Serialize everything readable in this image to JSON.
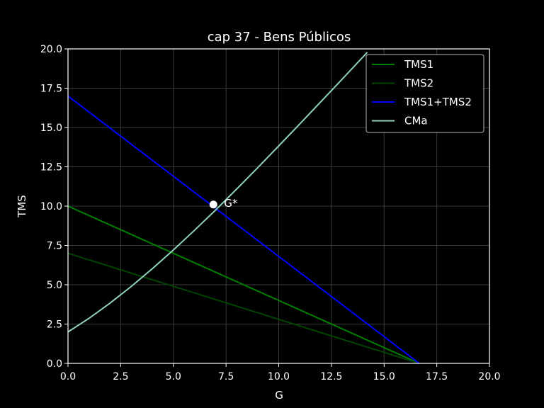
{
  "chart_data": {
    "type": "line",
    "title": "cap 37 - Bens Públicos",
    "xlabel": "G",
    "ylabel": "TMS",
    "xlim": [
      0,
      20
    ],
    "ylim": [
      0,
      20
    ],
    "x_ticks": [
      "0.0",
      "2.5",
      "5.0",
      "7.5",
      "10.0",
      "12.5",
      "15.0",
      "17.5",
      "20.0"
    ],
    "y_ticks": [
      "0.0",
      "2.5",
      "5.0",
      "7.5",
      "10.0",
      "12.5",
      "15.0",
      "17.5",
      "20.0"
    ],
    "grid": true,
    "legend_position": "top-right",
    "series": [
      {
        "name": "TMS1",
        "color": "#008000",
        "x": [
          0,
          16.67
        ],
        "y": [
          10,
          0
        ]
      },
      {
        "name": "TMS2",
        "color": "#004400",
        "x": [
          0,
          16.67
        ],
        "y": [
          7,
          0
        ]
      },
      {
        "name": "TMS1+TMS2",
        "color": "#0000ff",
        "x": [
          0,
          16.67
        ],
        "y": [
          17,
          0
        ]
      },
      {
        "name": "CMa",
        "color": "#8fd1bd",
        "x": [
          0,
          1,
          2,
          3,
          4,
          5,
          6,
          7,
          8,
          9,
          10,
          11,
          12,
          13,
          14,
          14.2
        ],
        "y": [
          2.0,
          2.87,
          3.84,
          4.89,
          6.02,
          7.21,
          8.46,
          9.75,
          11.08,
          12.44,
          13.83,
          15.23,
          16.64,
          18.06,
          19.49,
          19.78
        ]
      }
    ],
    "annotations": [
      {
        "text": "G*",
        "x": 6.9,
        "y": 10.1
      }
    ]
  }
}
